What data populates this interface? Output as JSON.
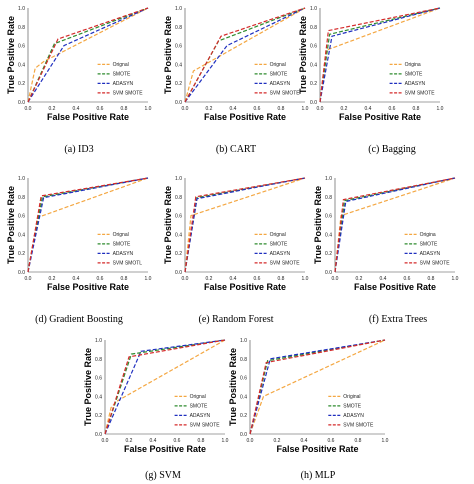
{
  "colors": {
    "Orignal": "#f4a742",
    "SMOTE": "#2e8b2e",
    "ADASYN": "#1f2fbf",
    "SVM SMOTE": "#d42a2a"
  },
  "chart_data": [
    {
      "type": "line",
      "caption": "(a) ID3",
      "xlabel": "False Positive Rate",
      "ylabel": "True Positive Rate",
      "xlim": [
        0,
        1
      ],
      "ylim": [
        0,
        1
      ],
      "xticks": [
        "0.0",
        "0.2",
        "0.4",
        "0.6",
        "0.8",
        "1.0"
      ],
      "yticks": [
        "0.0",
        "0.2",
        "0.4",
        "0.6",
        "0.8",
        "1.0"
      ],
      "legend": [
        "Orignal",
        "SMOTE",
        "ADASYN",
        "SVM SMOTE"
      ],
      "series": [
        {
          "name": "Orignal",
          "x": [
            0,
            0.06,
            0.13,
            1
          ],
          "y": [
            0,
            0.36,
            0.43,
            1
          ]
        },
        {
          "name": "SMOTE",
          "x": [
            0,
            0.22,
            1
          ],
          "y": [
            0,
            0.62,
            1
          ]
        },
        {
          "name": "ADASYN",
          "x": [
            0,
            0.3,
            1
          ],
          "y": [
            0,
            0.6,
            1
          ]
        },
        {
          "name": "SVM SMOTE",
          "x": [
            0,
            0.25,
            1
          ],
          "y": [
            0,
            0.67,
            1
          ]
        }
      ]
    },
    {
      "type": "line",
      "caption": "(b) CART",
      "xlabel": "False Positive Rate",
      "ylabel": "True Positive Rate",
      "xlim": [
        0,
        1
      ],
      "ylim": [
        0,
        1
      ],
      "xticks": [
        "0.0",
        "0.2",
        "0.4",
        "0.6",
        "0.8",
        "1.0"
      ],
      "yticks": [
        "0.0",
        "0.2",
        "0.4",
        "0.6",
        "0.8",
        "1.0"
      ],
      "legend": [
        "Orignal",
        "SMOTE",
        "ADASYN",
        "SVM SMOTE"
      ],
      "series": [
        {
          "name": "Orignal",
          "x": [
            0,
            0.07,
            1
          ],
          "y": [
            0,
            0.33,
            1
          ]
        },
        {
          "name": "SMOTE",
          "x": [
            0,
            0.28,
            1
          ],
          "y": [
            0,
            0.65,
            1
          ]
        },
        {
          "name": "ADASYN",
          "x": [
            0,
            0.35,
            1
          ],
          "y": [
            0,
            0.6,
            1
          ]
        },
        {
          "name": "SVM SMOTE",
          "x": [
            0,
            0.3,
            1
          ],
          "y": [
            0,
            0.7,
            1
          ]
        }
      ]
    },
    {
      "type": "line",
      "caption": "(c) Bagging",
      "xlabel": "False Positive Rate",
      "ylabel": "True Positive Rate",
      "xlim": [
        0,
        1
      ],
      "ylim": [
        0,
        1
      ],
      "xticks": [
        "0.0",
        "0.2",
        "0.4",
        "0.6",
        "0.8",
        "1.0"
      ],
      "yticks": [
        "0.0",
        "0.2",
        "0.4",
        "0.6",
        "0.8",
        "1.0"
      ],
      "legend": [
        "Origina",
        "SMOTE",
        "ADASYN",
        "SVM SMOTE"
      ],
      "series": [
        {
          "name": "Orignal",
          "x": [
            0,
            0.05,
            1
          ],
          "y": [
            0,
            0.55,
            1
          ]
        },
        {
          "name": "SMOTE",
          "x": [
            0,
            0.08,
            1
          ],
          "y": [
            0,
            0.72,
            1
          ]
        },
        {
          "name": "ADASYN",
          "x": [
            0,
            0.1,
            1
          ],
          "y": [
            0,
            0.7,
            1
          ]
        },
        {
          "name": "SVM SMOTE",
          "x": [
            0,
            0.07,
            1
          ],
          "y": [
            0,
            0.76,
            1
          ]
        }
      ]
    },
    {
      "type": "line",
      "caption": "(d) Gradient Boosting",
      "xlabel": "False Positive Rate",
      "ylabel": "True Positive Rate",
      "xlim": [
        0,
        1
      ],
      "ylim": [
        0,
        1
      ],
      "xticks": [
        "0.0",
        "0.2",
        "0.4",
        "0.6",
        "0.8",
        "1.0"
      ],
      "yticks": [
        "0.0",
        "0.2",
        "0.4",
        "0.6",
        "0.8",
        "1.0"
      ],
      "legend": [
        "Orignal",
        "SMOTE",
        "ADASYN",
        "SVM SMOTL"
      ],
      "series": [
        {
          "name": "Orignal",
          "x": [
            0,
            0.08,
            1
          ],
          "y": [
            0,
            0.58,
            1
          ]
        },
        {
          "name": "SMOTE",
          "x": [
            0,
            0.12,
            1
          ],
          "y": [
            0,
            0.8,
            1
          ]
        },
        {
          "name": "ADASYN",
          "x": [
            0,
            0.13,
            1
          ],
          "y": [
            0,
            0.79,
            1
          ]
        },
        {
          "name": "SVM SMOTE",
          "x": [
            0,
            0.11,
            1
          ],
          "y": [
            0,
            0.81,
            1
          ]
        }
      ]
    },
    {
      "type": "line",
      "caption": "(e) Random Forest",
      "xlabel": "False Positive Rate",
      "ylabel": "True Positive Rate",
      "xlim": [
        0,
        1
      ],
      "ylim": [
        0,
        1
      ],
      "xticks": [
        "0.0",
        "0.2",
        "0.4",
        "0.6",
        "0.8",
        "1.0"
      ],
      "yticks": [
        "0.0",
        "0.2",
        "0.4",
        "0.6",
        "0.8",
        "1.0"
      ],
      "legend": [
        "Orignal",
        "SMOTE",
        "ADASYN",
        "SVM SMOTE"
      ],
      "series": [
        {
          "name": "Orignal",
          "x": [
            0,
            0.05,
            1
          ],
          "y": [
            0,
            0.6,
            1
          ]
        },
        {
          "name": "SMOTE",
          "x": [
            0,
            0.1,
            1
          ],
          "y": [
            0,
            0.79,
            1
          ]
        },
        {
          "name": "ADASYN",
          "x": [
            0,
            0.1,
            1
          ],
          "y": [
            0,
            0.78,
            1
          ]
        },
        {
          "name": "SVM SMOTE",
          "x": [
            0,
            0.09,
            1
          ],
          "y": [
            0,
            0.8,
            1
          ]
        }
      ]
    },
    {
      "type": "line",
      "caption": "(f) Extra Trees",
      "xlabel": "False Positive Rate",
      "ylabel": "True Positive Rate",
      "xlim": [
        0,
        1
      ],
      "ylim": [
        0,
        1
      ],
      "xticks": [
        "0.0",
        "0.2",
        "0.4",
        "0.6",
        "0.8",
        "1.0"
      ],
      "yticks": [
        "0.0",
        "0.2",
        "0.4",
        "0.6",
        "0.8",
        "1.0"
      ],
      "legend": [
        "Origina",
        "SMOTE",
        "ADASYN",
        "SVM SMOTE"
      ],
      "series": [
        {
          "name": "Orignal",
          "x": [
            0,
            0.05,
            1
          ],
          "y": [
            0,
            0.6,
            1
          ]
        },
        {
          "name": "SMOTE",
          "x": [
            0,
            0.08,
            1
          ],
          "y": [
            0,
            0.76,
            1
          ]
        },
        {
          "name": "ADASYN",
          "x": [
            0,
            0.09,
            1
          ],
          "y": [
            0,
            0.75,
            1
          ]
        },
        {
          "name": "SVM SMOTE",
          "x": [
            0,
            0.07,
            1
          ],
          "y": [
            0,
            0.77,
            1
          ]
        }
      ]
    },
    {
      "type": "line",
      "caption": "(g) SVM",
      "xlabel": "False Positive Rate",
      "ylabel": "True Positive Rate",
      "xlim": [
        0,
        1
      ],
      "ylim": [
        0,
        1
      ],
      "xticks": [
        "0.0",
        "0.2",
        "0.4",
        "0.6",
        "0.8",
        "1.0"
      ],
      "yticks": [
        "0.0",
        "0.2",
        "0.4",
        "0.6",
        "0.8",
        "1.0"
      ],
      "legend": [
        "Orignal",
        "SMOTE",
        "ADASYN",
        "SVM SMOTE"
      ],
      "series": [
        {
          "name": "Orignal",
          "x": [
            0,
            0.05,
            0.1,
            1
          ],
          "y": [
            0,
            0.28,
            0.35,
            1
          ]
        },
        {
          "name": "SMOTE",
          "x": [
            0,
            0.22,
            1
          ],
          "y": [
            0,
            0.85,
            1
          ]
        },
        {
          "name": "ADASYN",
          "x": [
            0,
            0.3,
            1
          ],
          "y": [
            0,
            0.88,
            1
          ]
        },
        {
          "name": "SVM SMOTE",
          "x": [
            0,
            0.2,
            1
          ],
          "y": [
            0,
            0.82,
            1
          ]
        }
      ]
    },
    {
      "type": "line",
      "caption": "(h) MLP",
      "xlabel": "False Positive Rate",
      "ylabel": "True Positive Rate",
      "xlim": [
        0,
        1
      ],
      "ylim": [
        0,
        1
      ],
      "xticks": [
        "0.0",
        "0.2",
        "0.4",
        "0.6",
        "0.8",
        "1.0"
      ],
      "yticks": [
        "0.0",
        "0.2",
        "0.4",
        "0.6",
        "0.8",
        "1.0"
      ],
      "legend": [
        "Original",
        "SMOTE",
        "ADASYN",
        "SVM SMOTE"
      ],
      "series": [
        {
          "name": "Orignal",
          "x": [
            0,
            0.1,
            1
          ],
          "y": [
            0,
            0.4,
            1
          ]
        },
        {
          "name": "SMOTE",
          "x": [
            0,
            0.13,
            1
          ],
          "y": [
            0,
            0.78,
            1
          ]
        },
        {
          "name": "ADASYN",
          "x": [
            0,
            0.15,
            1
          ],
          "y": [
            0,
            0.8,
            1
          ]
        },
        {
          "name": "SVM SMOTE",
          "x": [
            0,
            0.12,
            1
          ],
          "y": [
            0,
            0.76,
            1
          ]
        }
      ]
    }
  ]
}
